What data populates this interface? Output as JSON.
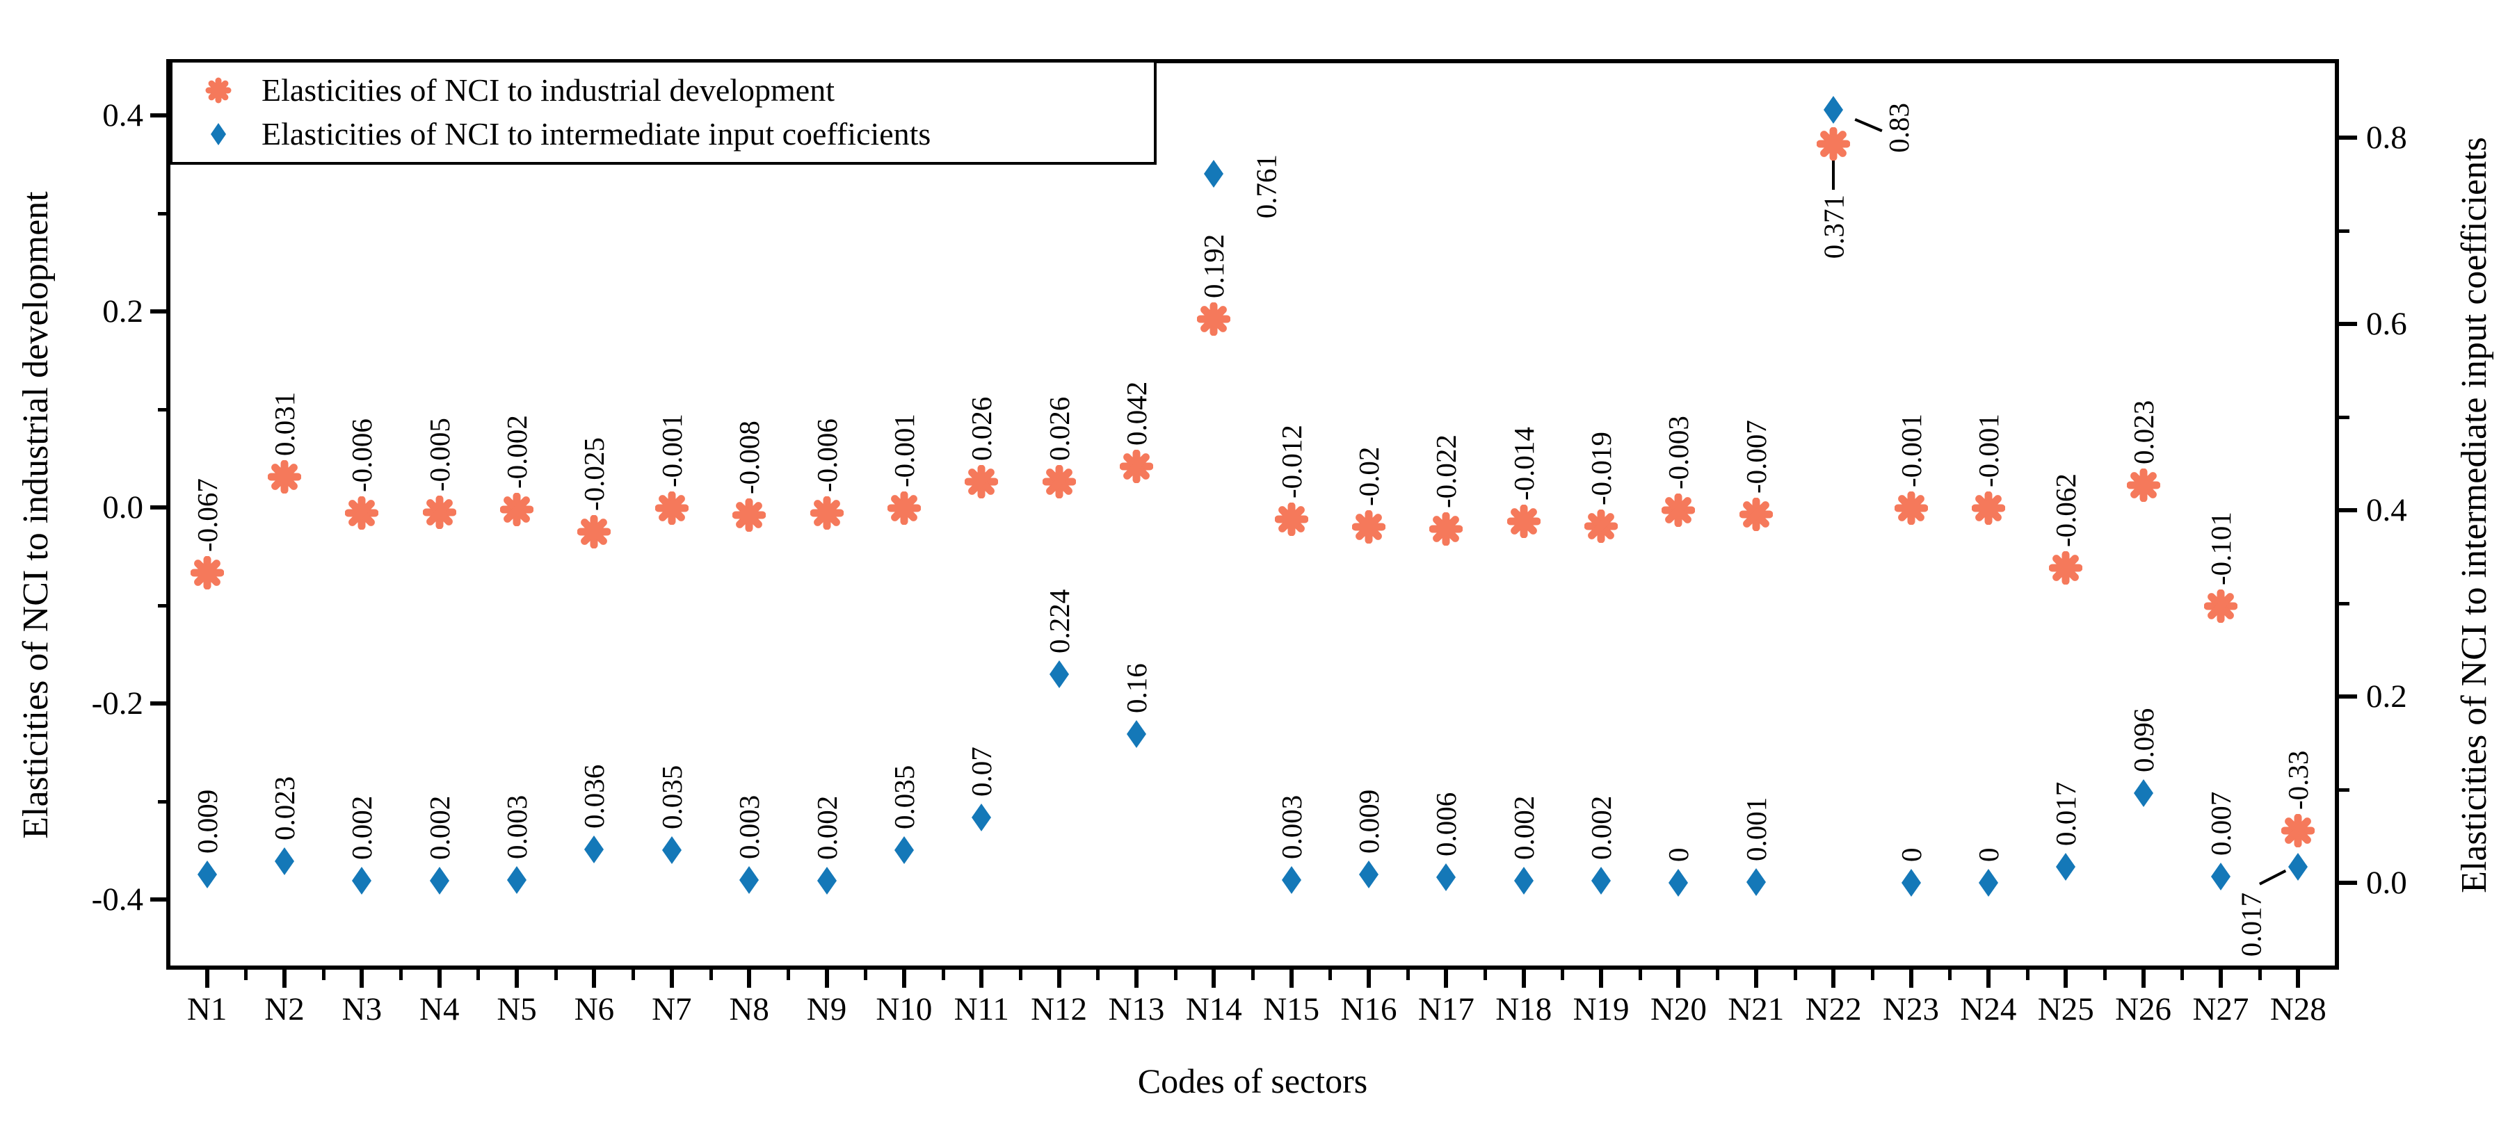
{
  "axes": {
    "left": {
      "title": "Elasticities of NCI to industrial development",
      "tick_labels": [
        "0.4",
        "0.2",
        "0.0",
        "-0.2",
        "-0.4"
      ],
      "tick_values": [
        0.4,
        0.2,
        0.0,
        -0.2,
        -0.4
      ],
      "minor_values": [
        0.3,
        0.1,
        -0.1,
        -0.3
      ]
    },
    "right": {
      "title": "Elasticities of NCI to intermediate input coefficients",
      "tick_labels": [
        "0.8",
        "0.6",
        "0.4",
        "0.2",
        "0.0"
      ],
      "tick_values": [
        0.8,
        0.6,
        0.4,
        0.2,
        0.0
      ],
      "minor_values": [
        0.7,
        0.5,
        0.3,
        0.1
      ]
    },
    "x": {
      "title": "Codes of sectors"
    }
  },
  "legend": {
    "items": [
      {
        "label": "Elasticities of NCI to industrial development",
        "marker": "star-icon",
        "color": "#F5795B"
      },
      {
        "label": "Elasticities of NCI to intermediate input coefficients",
        "marker": "diamond-icon",
        "color": "#1478B8"
      }
    ]
  },
  "colors": {
    "industrial": "#F5795B",
    "intermediate": "#1478B8",
    "axis": "#000000"
  },
  "chart_data": {
    "type": "scatter",
    "title": "",
    "xlabel": "Codes of sectors",
    "left_ylabel": "Elasticities of NCI to industrial development",
    "right_ylabel": "Elasticities of NCI to intermediate input coefficients",
    "left_ylim": [
      -0.47,
      0.455
    ],
    "right_ylim": [
      -0.09,
      0.88
    ],
    "grid": false,
    "legend_position": "top-left",
    "categories": [
      "N1",
      "N2",
      "N3",
      "N4",
      "N5",
      "N6",
      "N7",
      "N8",
      "N9",
      "N10",
      "N11",
      "N12",
      "N13",
      "N14",
      "N15",
      "N16",
      "N17",
      "N18",
      "N19",
      "N20",
      "N21",
      "N22",
      "N23",
      "N24",
      "N25",
      "N26",
      "N27",
      "N28"
    ],
    "series": [
      {
        "name": "Elasticities of NCI to industrial development",
        "axis": "left",
        "marker": "star",
        "color": "#F5795B",
        "values": [
          -0.067,
          0.031,
          -0.006,
          -0.005,
          -0.002,
          -0.025,
          -0.001,
          -0.008,
          -0.006,
          -0.001,
          0.026,
          0.026,
          0.042,
          0.192,
          -0.012,
          -0.02,
          -0.022,
          -0.014,
          -0.019,
          -0.003,
          -0.007,
          0.371,
          -0.001,
          -0.001,
          -0.062,
          0.023,
          -0.101,
          -0.33
        ],
        "labels": [
          "-0.067",
          "0.031",
          "-0.006",
          "-0.005",
          "-0.002",
          "-0.025",
          "-0.001",
          "-0.008",
          "-0.006",
          "-0.001",
          "0.026",
          "0.026",
          "0.042",
          "0.192",
          "-0.012",
          "-0.02",
          "-0.022",
          "-0.014",
          "-0.019",
          "-0.003",
          "-0.007",
          "0.371",
          "-0.001",
          "-0.001",
          "-0.062",
          "0.023",
          "-0.101",
          "-0.33"
        ],
        "label_placement": {
          "N22": "below-leader"
        }
      },
      {
        "name": "Elasticities of NCI to intermediate input coefficients",
        "axis": "right",
        "marker": "diamond",
        "color": "#1478B8",
        "values": [
          0.009,
          0.023,
          0.002,
          0.002,
          0.003,
          0.036,
          0.035,
          0.003,
          0.002,
          0.035,
          0.07,
          0.224,
          0.16,
          0.761,
          0.003,
          0.009,
          0.006,
          0.002,
          0.002,
          0,
          0.001,
          0.83,
          0,
          0,
          0.017,
          0.096,
          0.007,
          0.017
        ],
        "labels": [
          "0.009",
          "0.023",
          "0.002",
          "0.002",
          "0.003",
          "0.036",
          "0.035",
          "0.003",
          "0.002",
          "0.035",
          "0.07",
          "0.224",
          "0.16",
          "0.761",
          "0.003",
          "0.009",
          "0.006",
          "0.002",
          "0.002",
          "0",
          "0.001",
          "0.83",
          "0",
          "0",
          "0.017",
          "0.096",
          "0.007",
          "0.017"
        ],
        "label_placement": {
          "N14": "right",
          "N22": "right-leader",
          "N28": "left-below-leader"
        }
      }
    ]
  }
}
